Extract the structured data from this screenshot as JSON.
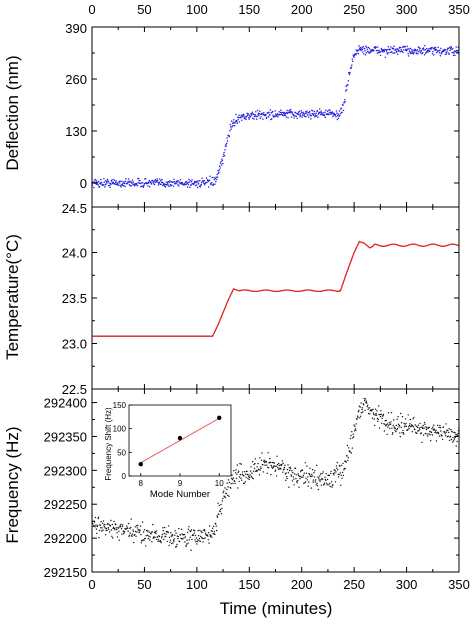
{
  "chart_data": [
    {
      "type": "scatter",
      "panel": "deflection",
      "ylabel": "Deflection (nm)",
      "xlim": [
        0,
        350
      ],
      "ylim": [
        -60,
        390
      ],
      "yticks": [
        0,
        130,
        260,
        390
      ],
      "x_top_ticks": [
        0,
        50,
        100,
        150,
        200,
        250,
        300,
        350
      ],
      "color": "#2222dd",
      "series": [
        {
          "x": [
            0,
            50,
            100,
            110,
            118,
            125,
            132,
            140,
            160,
            180,
            200,
            220,
            235,
            240,
            245,
            250,
            255,
            260,
            280,
            300,
            320,
            350
          ],
          "y": [
            0,
            0,
            0,
            0,
            5,
            60,
            140,
            165,
            170,
            172,
            172,
            175,
            170,
            190,
            270,
            320,
            335,
            333,
            330,
            332,
            330,
            330
          ]
        }
      ]
    },
    {
      "type": "line",
      "panel": "temperature",
      "ylabel": "Temperature(°C)",
      "xlim": [
        0,
        350
      ],
      "ylim": [
        22.5,
        24.5
      ],
      "yticks": [
        22.5,
        23.0,
        23.5,
        24.0,
        24.5
      ],
      "color": "#e02020",
      "series": [
        {
          "x": [
            0,
            50,
            100,
            115,
            120,
            130,
            135,
            140,
            150,
            200,
            237,
            242,
            250,
            255,
            260,
            265,
            270,
            300,
            350
          ],
          "y": [
            23.08,
            23.08,
            23.08,
            23.08,
            23.2,
            23.48,
            23.6,
            23.58,
            23.58,
            23.58,
            23.58,
            23.75,
            24.0,
            24.12,
            24.1,
            24.05,
            24.08,
            24.08,
            24.08
          ]
        }
      ]
    },
    {
      "type": "scatter",
      "panel": "frequency",
      "ylabel": "Frequency (Hz)",
      "xlabel": "Time (minutes)",
      "xlim": [
        0,
        350
      ],
      "ylim": [
        292150,
        292420
      ],
      "yticks": [
        292150,
        292200,
        292250,
        292300,
        292350,
        292400
      ],
      "xticks": [
        0,
        50,
        100,
        150,
        200,
        250,
        300,
        350
      ],
      "color": "#111111",
      "series": [
        {
          "x": [
            0,
            30,
            60,
            90,
            115,
            125,
            135,
            150,
            165,
            180,
            195,
            210,
            225,
            240,
            250,
            258,
            265,
            280,
            300,
            320,
            350
          ],
          "y": [
            292220,
            292210,
            292205,
            292200,
            292205,
            292260,
            292290,
            292295,
            292310,
            292305,
            292290,
            292290,
            292285,
            292300,
            292360,
            292400,
            292390,
            292370,
            292365,
            292360,
            292350
          ]
        }
      ]
    },
    {
      "type": "scatter",
      "panel": "inset",
      "ylabel": "Frequency Shift (Hz)",
      "xlabel": "Mode Number",
      "xlim": [
        7.7,
        10.3
      ],
      "ylim": [
        0,
        150
      ],
      "xticks": [
        8,
        9,
        10
      ],
      "yticks": [
        0,
        50,
        100,
        150
      ],
      "points": [
        {
          "x": 8,
          "y": 25
        },
        {
          "x": 9,
          "y": 80
        },
        {
          "x": 10,
          "y": 123
        }
      ],
      "fit": {
        "x": [
          8,
          10
        ],
        "y": [
          28,
          122
        ],
        "color": "#e06060"
      }
    }
  ]
}
